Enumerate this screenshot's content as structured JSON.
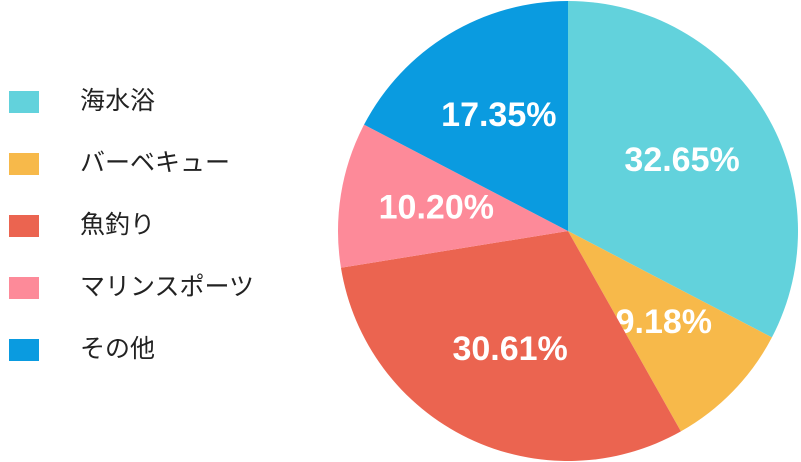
{
  "chart_data": {
    "type": "pie",
    "categories": [
      "海水浴",
      "バーベキュー",
      "魚釣り",
      "マリンスポーツ",
      "その他"
    ],
    "values": [
      32.65,
      9.18,
      30.61,
      10.2,
      17.35
    ],
    "value_labels": [
      "32.65%",
      "9.18%",
      "30.61%",
      "10.20%",
      "17.35%"
    ],
    "colors": [
      "#62d2dc",
      "#f7b94a",
      "#eb6450",
      "#fd8a99",
      "#0a9be0"
    ]
  }
}
